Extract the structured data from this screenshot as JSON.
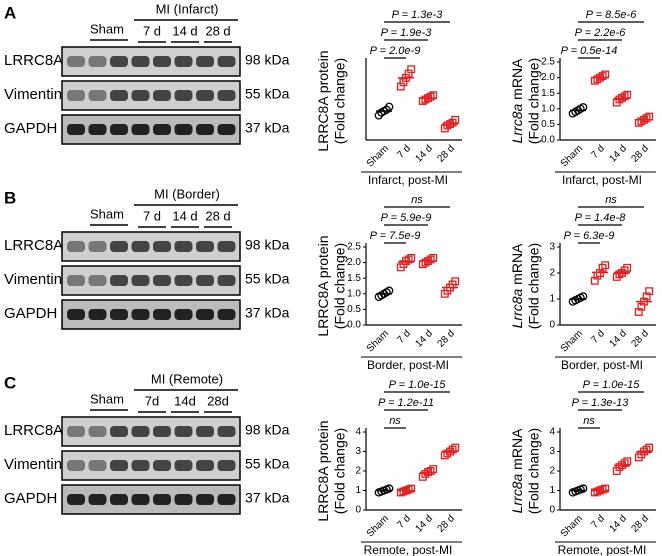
{
  "panels": [
    {
      "letter": "A",
      "blot": {
        "header": "MI (Infarct)",
        "lanes": [
          "Sham",
          "7 d",
          "14 d",
          "28 d"
        ],
        "rows": [
          {
            "name": "LRRC8A",
            "size": "98 kDa"
          },
          {
            "name": "Vimentin",
            "size": "55 kDa"
          },
          {
            "name": "GAPDH",
            "size": "37 kDa"
          }
        ]
      }
    },
    {
      "letter": "B",
      "blot": {
        "header": "MI (Border)",
        "lanes": [
          "Sham",
          "7 d",
          "14 d",
          "28 d"
        ],
        "rows": [
          {
            "name": "LRRC8A",
            "size": "98 kDa"
          },
          {
            "name": "Vimentin",
            "size": "55 kDa"
          },
          {
            "name": "GAPDH",
            "size": "37 kDa"
          }
        ]
      }
    },
    {
      "letter": "C",
      "blot": {
        "header": "MI (Remote)",
        "lanes": [
          "Sham",
          "7d",
          "14d",
          "28d"
        ],
        "rows": [
          {
            "name": "LRRC8A",
            "size": "98 kDa"
          },
          {
            "name": "Vimentin",
            "size": "55 kDa"
          },
          {
            "name": "GAPDH",
            "size": "37 kDa"
          }
        ]
      }
    }
  ],
  "chart_data": [
    {
      "type": "dot",
      "ylabel": "LRRC8A protein",
      "ylabel2": "(Fold change)",
      "xlabel": "Infarct, post-MI",
      "categories": [
        "Sham",
        "7 d",
        "14 d",
        "28 d"
      ],
      "colors": [
        "#000000",
        "#e02020",
        "#e02020",
        "#e02020"
      ],
      "markers": [
        "circle",
        "square",
        "square",
        "square"
      ],
      "values": [
        [
          0.85,
          0.95,
          1.0,
          1.05,
          1.15
        ],
        [
          1.85,
          2.0,
          2.15,
          2.3,
          2.45
        ],
        [
          1.35,
          1.4,
          1.45,
          1.5,
          1.55
        ],
        [
          0.4,
          0.5,
          0.55,
          0.6,
          0.7
        ]
      ],
      "ylim": [
        0,
        2.7
      ],
      "brackets": [
        {
          "label": "P = 1.3e-3",
          "to": "28 d"
        },
        {
          "label": "P = 1.9e-3",
          "to": "14 d"
        },
        {
          "label": "P = 2.0e-9",
          "to": "7 d"
        }
      ]
    },
    {
      "type": "dot",
      "gene": "Lrrc8a",
      "ylabel": "mRNA",
      "ylabel2": "(Fold change)",
      "xlabel": "Infarct, post-MI",
      "categories": [
        "Sham",
        "7 d",
        "14 d",
        "28 d"
      ],
      "colors": [
        "#000000",
        "#e02020",
        "#e02020",
        "#e02020"
      ],
      "markers": [
        "circle",
        "square",
        "square",
        "square"
      ],
      "values": [
        [
          0.85,
          0.9,
          0.95,
          1.0,
          1.05
        ],
        [
          1.9,
          1.95,
          2.0,
          2.05,
          2.1
        ],
        [
          1.2,
          1.3,
          1.35,
          1.4,
          1.45
        ],
        [
          0.55,
          0.6,
          0.65,
          0.7,
          0.75
        ]
      ],
      "ylim": [
        0,
        2.5
      ],
      "yticks": [
        {
          "value": 0,
          "label": "0.0"
        },
        0.5,
        {
          "value": 1,
          "label": "1.0"
        },
        1.5,
        {
          "value": 2,
          "label": "2.0"
        },
        2.5
      ],
      "brackets": [
        {
          "label": "P = 8.5e-6",
          "to": "28 d"
        },
        {
          "label": "P = 2.2e-6",
          "to": "14 d"
        },
        {
          "label": "P = 0.5e-14",
          "to": "7 d"
        }
      ]
    },
    {
      "type": "dot",
      "ylabel": "LRRC8A protein",
      "ylabel2": "(Fold change)",
      "xlabel": "Border, post-MI",
      "categories": [
        "Sham",
        "7 d",
        "14 d",
        "28 d"
      ],
      "colors": [
        "#000000",
        "#e02020",
        "#e02020",
        "#e02020"
      ],
      "markers": [
        "circle",
        "square",
        "square",
        "square"
      ],
      "values": [
        [
          0.9,
          0.95,
          1.0,
          1.05,
          1.1
        ],
        [
          1.85,
          1.95,
          2.05,
          2.1,
          2.15
        ],
        [
          1.95,
          2.0,
          2.05,
          2.1,
          2.15
        ],
        [
          1.0,
          1.1,
          1.2,
          1.3,
          1.4
        ]
      ],
      "ylim": [
        0,
        2.5
      ],
      "yticks": [
        {
          "value": 0,
          "label": "0.0"
        },
        0.5,
        {
          "value": 1,
          "label": "1.0"
        },
        1.5,
        {
          "value": 2,
          "label": "2.0"
        },
        2.5
      ],
      "brackets": [
        {
          "label": "ns",
          "to": "28 d"
        },
        {
          "label": "P = 5.9e-9",
          "to": "14 d"
        },
        {
          "label": "P = 7.5e-9",
          "to": "7 d"
        }
      ]
    },
    {
      "type": "dot",
      "gene": "Lrrc8a",
      "ylabel": "mRNA",
      "ylabel2": "(Fold change)",
      "xlabel": "Border, post-MI",
      "categories": [
        "Sham",
        "7 d",
        "14 d",
        "28 d"
      ],
      "colors": [
        "#000000",
        "#e02020",
        "#e02020",
        "#e02020"
      ],
      "markers": [
        "circle",
        "square",
        "square",
        "square"
      ],
      "values": [
        [
          0.9,
          0.95,
          1.0,
          1.05,
          1.1
        ],
        [
          1.7,
          1.9,
          2.0,
          2.2,
          2.3
        ],
        [
          1.85,
          1.95,
          2.0,
          2.1,
          2.2
        ],
        [
          0.5,
          0.7,
          0.9,
          1.1,
          1.3
        ]
      ],
      "ylim": [
        0,
        3
      ],
      "yticks": [
        0,
        1,
        2,
        3
      ],
      "brackets": [
        {
          "label": "ns",
          "to": "28 d"
        },
        {
          "label": "P = 1.4e-8",
          "to": "14 d"
        },
        {
          "label": "P = 6.3e-9",
          "to": "7 d"
        }
      ]
    },
    {
      "type": "dot",
      "ylabel": "LRRC8A protein",
      "ylabel2": "(Fold change)",
      "xlabel": "Remote, post-MI",
      "categories": [
        "Sham",
        "7 d",
        "14 d",
        "28 d"
      ],
      "colors": [
        "#000000",
        "#e02020",
        "#e02020",
        "#e02020"
      ],
      "markers": [
        "circle",
        "square",
        "square",
        "square"
      ],
      "values": [
        [
          0.9,
          0.95,
          1.0,
          1.05,
          1.1
        ],
        [
          0.9,
          0.95,
          1.0,
          1.05,
          1.1
        ],
        [
          1.7,
          1.85,
          1.95,
          2.0,
          2.1
        ],
        [
          2.8,
          2.9,
          3.0,
          3.1,
          3.2
        ]
      ],
      "ylim": [
        0,
        4
      ],
      "yticks": [
        0,
        1,
        2,
        3,
        4
      ],
      "brackets": [
        {
          "label": "P = 1.0e-15",
          "to": "28 d"
        },
        {
          "label": "P = 1.2e-11",
          "to": "14 d"
        },
        {
          "label": "ns",
          "to": "7 d"
        }
      ]
    },
    {
      "type": "dot",
      "gene": "Lrrc8a",
      "ylabel": "mRNA",
      "ylabel2": "(Fold change)",
      "xlabel": "Remote, post-MI",
      "categories": [
        "Sham",
        "7 d",
        "14 d",
        "28 d"
      ],
      "colors": [
        "#000000",
        "#e02020",
        "#e02020",
        "#e02020"
      ],
      "markers": [
        "circle",
        "square",
        "square",
        "square"
      ],
      "values": [
        [
          0.9,
          0.95,
          1.0,
          1.05,
          1.1
        ],
        [
          0.9,
          0.95,
          1.0,
          1.05,
          1.1
        ],
        [
          2.0,
          2.2,
          2.3,
          2.4,
          2.5
        ],
        [
          2.7,
          2.85,
          3.0,
          3.1,
          3.2
        ]
      ],
      "ylim": [
        0,
        4
      ],
      "yticks": [
        0,
        1,
        2,
        3,
        4
      ],
      "brackets": [
        {
          "label": "P = 1.0e-15",
          "to": "28 d"
        },
        {
          "label": "P = 1.3e-13",
          "to": "14 d"
        },
        {
          "label": "ns",
          "to": "7 d"
        }
      ]
    }
  ]
}
